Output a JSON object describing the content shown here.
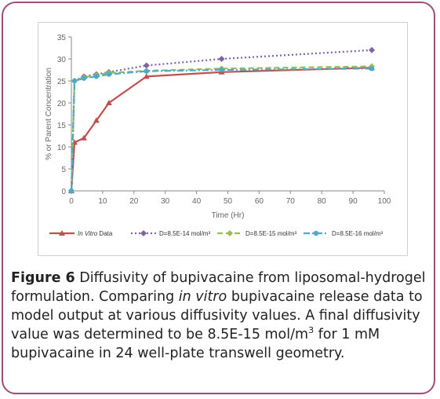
{
  "chart_data": {
    "type": "line",
    "xlabel": "Time (Hr)",
    "ylabel": "% or Parent Concentration",
    "xlim": [
      0,
      100
    ],
    "ylim": [
      0,
      35
    ],
    "xticks": [
      0,
      10,
      20,
      30,
      40,
      50,
      60,
      70,
      80,
      90,
      100
    ],
    "yticks": [
      0,
      5,
      10,
      15,
      20,
      25,
      30,
      35
    ],
    "grid": false,
    "legend_position": "bottom",
    "series": [
      {
        "name": "In Vitro Data",
        "name_italic": "In Vitro",
        "name_rest": " Data",
        "color": "#c0504d",
        "style": "solid",
        "marker": "triangle",
        "x": [
          0,
          1,
          4,
          8,
          12,
          24,
          48,
          96
        ],
        "y": [
          0,
          11,
          12,
          16,
          20,
          26,
          27,
          28
        ]
      },
      {
        "name": "D=8.5E-14 mol/m³",
        "color": "#8064a2",
        "style": "dotted",
        "marker": "diamond",
        "x": [
          0,
          1,
          4,
          8,
          12,
          24,
          48,
          96
        ],
        "y": [
          0,
          25,
          26,
          26.5,
          27,
          28.5,
          30,
          32
        ]
      },
      {
        "name": "D=8.5E-15 mol/m³",
        "color": "#9bbb59",
        "style": "dashed",
        "marker": "diamond",
        "x": [
          0,
          1,
          4,
          8,
          12,
          24,
          48,
          96
        ],
        "y": [
          0,
          25,
          25.8,
          26.3,
          26.8,
          27.3,
          27.8,
          28.3
        ]
      },
      {
        "name": "D=8.5E-16 mol/m³",
        "color": "#4bacc6",
        "style": "dashdot",
        "marker": "circle",
        "x": [
          0,
          1,
          4,
          8,
          12,
          24,
          48,
          96
        ],
        "y": [
          0,
          25,
          25.6,
          26,
          26.5,
          27.2,
          27.5,
          27.8
        ]
      }
    ]
  },
  "caption": {
    "figure_label": "Figure 6",
    "part1": " Diffusivity of bupivacaine from liposomal-hydrogel formulation. Comparing ",
    "italic": "in vitro",
    "part2": " bupivacaine release data to model output at various diffusivity values. A final diffusivity value was determined to be 8.5E-15 mol/m",
    "superscript": "3",
    "part3": " for 1 mM bupivacaine in 24 well-plate transwell geometry."
  }
}
